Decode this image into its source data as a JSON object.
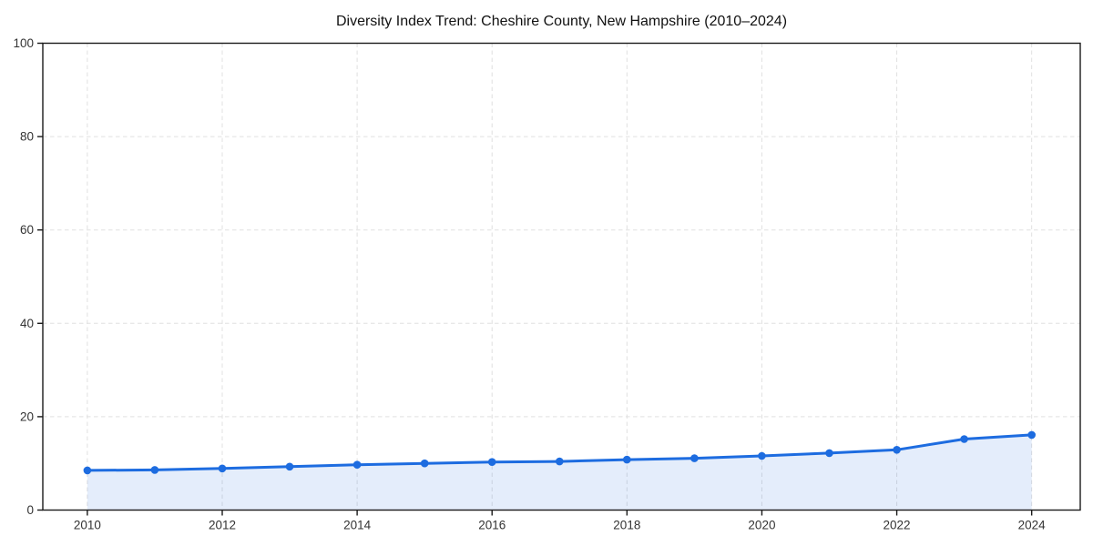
{
  "page": {
    "background": "#ffffff"
  },
  "chart_data": {
    "type": "area",
    "title": "Diversity Index Trend: Cheshire County, New Hampshire (2010–2024)",
    "x": [
      2010,
      2011,
      2012,
      2013,
      2014,
      2015,
      2016,
      2017,
      2018,
      2019,
      2020,
      2021,
      2022,
      2023,
      2024
    ],
    "series": [
      {
        "name": "Diversity Index",
        "values": [
          8.5,
          8.6,
          8.9,
          9.3,
          9.7,
          10.0,
          10.3,
          10.4,
          10.8,
          11.1,
          11.6,
          12.2,
          12.9,
          15.2,
          16.1
        ]
      }
    ],
    "xlabel": "",
    "ylabel": "",
    "xticks": [
      2010,
      2012,
      2014,
      2016,
      2018,
      2020,
      2022,
      2024
    ],
    "yticks": [
      0,
      20,
      40,
      60,
      80,
      100
    ],
    "xlim": [
      2009.34,
      2024.72
    ],
    "ylim": [
      0,
      100
    ],
    "grid": true,
    "grid_style": "dashed",
    "legend": "none",
    "marker": "circle",
    "colors": {
      "line": "#1d6ce0",
      "marker": "#1d6ce0",
      "fill": "rgba(29,108,224,0.12)",
      "grid": "#e0e0e0",
      "spine": "#1a1a1a",
      "tick_text": "#333333",
      "title_text": "#111111",
      "background": "#ffffff"
    }
  }
}
